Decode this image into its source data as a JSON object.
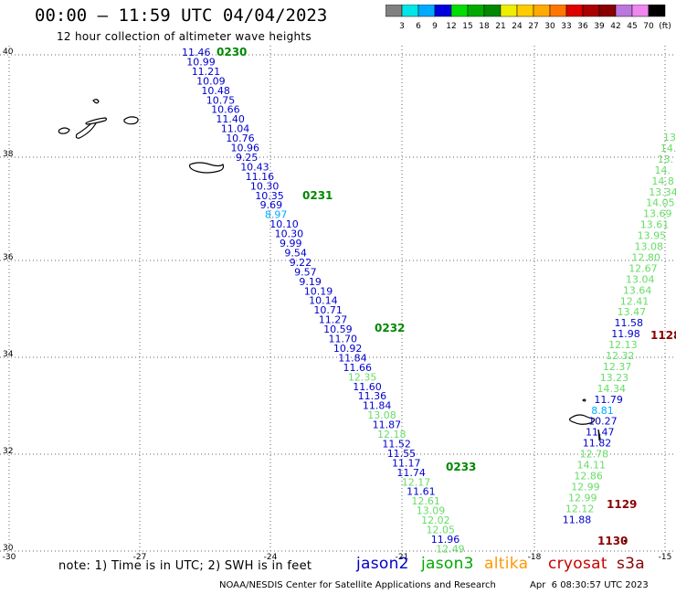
{
  "header": {
    "title": "00:00 – 11:59 UTC 04/04/2023",
    "subtitle": "12 hour collection of altimeter wave heights"
  },
  "color_scale": {
    "labels": [
      "3",
      "6",
      "9",
      "12",
      "15",
      "18",
      "21",
      "24",
      "27",
      "30",
      "33",
      "36",
      "39",
      "42",
      "45",
      "70",
      "(ft)"
    ],
    "colors": [
      "#808080",
      "#00e5e5",
      "#00aaff",
      "#0000dd",
      "#00dd00",
      "#00aa00",
      "#008800",
      "#eeee00",
      "#ffcc00",
      "#ffaa00",
      "#ff7700",
      "#dd0000",
      "#aa0000",
      "#880000",
      "#bb77dd",
      "#ee88ee",
      "#000000"
    ]
  },
  "axes": {
    "lat_labels": [
      "40",
      "38",
      "36",
      "34",
      "32",
      "30"
    ],
    "lon_labels": [
      "-30",
      "-27",
      "-24",
      "-21",
      "-18",
      "-15"
    ]
  },
  "tracks": {
    "left": {
      "times": [
        "0230",
        "0231",
        "0232",
        "0233"
      ],
      "values": [
        {
          "v": "11.46",
          "c": "#0000cc"
        },
        {
          "v": "10.99",
          "c": "#0000cc"
        },
        {
          "v": "11.21",
          "c": "#0000cc"
        },
        {
          "v": "10.09",
          "c": "#0000cc"
        },
        {
          "v": "10.48",
          "c": "#0000cc"
        },
        {
          "v": "10.75",
          "c": "#0000cc"
        },
        {
          "v": "10.66",
          "c": "#0000cc"
        },
        {
          "v": "11.40",
          "c": "#0000cc"
        },
        {
          "v": "11.04",
          "c": "#0000cc"
        },
        {
          "v": "10.76",
          "c": "#0000cc"
        },
        {
          "v": "10.96",
          "c": "#0000cc"
        },
        {
          "v": "9.25",
          "c": "#0000cc"
        },
        {
          "v": "10.43",
          "c": "#0000cc"
        },
        {
          "v": "11.16",
          "c": "#0000cc"
        },
        {
          "v": "10.30",
          "c": "#0000cc"
        },
        {
          "v": "10.35",
          "c": "#0000cc"
        },
        {
          "v": "9.69",
          "c": "#0000cc"
        },
        {
          "v": "8.97",
          "c": "#00aaff"
        },
        {
          "v": "10.10",
          "c": "#0000cc"
        },
        {
          "v": "10.30",
          "c": "#0000cc"
        },
        {
          "v": "9.99",
          "c": "#0000cc"
        },
        {
          "v": "9.54",
          "c": "#0000cc"
        },
        {
          "v": "9.22",
          "c": "#0000cc"
        },
        {
          "v": "9.57",
          "c": "#0000cc"
        },
        {
          "v": "9.19",
          "c": "#0000cc"
        },
        {
          "v": "10.19",
          "c": "#0000cc"
        },
        {
          "v": "10.14",
          "c": "#0000cc"
        },
        {
          "v": "10.71",
          "c": "#0000cc"
        },
        {
          "v": "11.27",
          "c": "#0000cc"
        },
        {
          "v": "10.59",
          "c": "#0000cc"
        },
        {
          "v": "11.70",
          "c": "#0000cc"
        },
        {
          "v": "10.92",
          "c": "#0000cc"
        },
        {
          "v": "11.84",
          "c": "#0000cc"
        },
        {
          "v": "11.66",
          "c": "#0000cc"
        },
        {
          "v": "12.35",
          "c": "#66dd66"
        },
        {
          "v": "11.60",
          "c": "#0000cc"
        },
        {
          "v": "11.36",
          "c": "#0000cc"
        },
        {
          "v": "11.84",
          "c": "#0000cc"
        },
        {
          "v": "13.08",
          "c": "#66dd66"
        },
        {
          "v": "11.87",
          "c": "#0000cc"
        },
        {
          "v": "12.18",
          "c": "#66dd66"
        },
        {
          "v": "11.52",
          "c": "#0000cc"
        },
        {
          "v": "11.55",
          "c": "#0000cc"
        },
        {
          "v": "11.17",
          "c": "#0000cc"
        },
        {
          "v": "11.74",
          "c": "#0000cc"
        },
        {
          "v": "12.17",
          "c": "#66dd66"
        },
        {
          "v": "11.61",
          "c": "#0000cc"
        },
        {
          "v": "12.61",
          "c": "#66dd66"
        },
        {
          "v": "13.09",
          "c": "#66dd66"
        },
        {
          "v": "12.02",
          "c": "#66dd66"
        },
        {
          "v": "12.05",
          "c": "#66dd66"
        },
        {
          "v": "11.96",
          "c": "#0000cc"
        },
        {
          "v": "12.49",
          "c": "#66dd66"
        }
      ]
    },
    "right": {
      "times": [
        "1128",
        "1129",
        "1130"
      ],
      "values": [
        {
          "v": "13.",
          "c": "#66dd66"
        },
        {
          "v": "14.",
          "c": "#66dd66"
        },
        {
          "v": "13.",
          "c": "#66dd66"
        },
        {
          "v": "14.",
          "c": "#66dd66"
        },
        {
          "v": "14.8",
          "c": "#66dd66"
        },
        {
          "v": "13.34",
          "c": "#66dd66"
        },
        {
          "v": "14.05",
          "c": "#66dd66"
        },
        {
          "v": "13.69",
          "c": "#66dd66"
        },
        {
          "v": "13.61",
          "c": "#66dd66"
        },
        {
          "v": "13.95",
          "c": "#66dd66"
        },
        {
          "v": "13.08",
          "c": "#66dd66"
        },
        {
          "v": "12.80",
          "c": "#66dd66"
        },
        {
          "v": "12.67",
          "c": "#66dd66"
        },
        {
          "v": "13.04",
          "c": "#66dd66"
        },
        {
          "v": "13.64",
          "c": "#66dd66"
        },
        {
          "v": "12.41",
          "c": "#66dd66"
        },
        {
          "v": "13.47",
          "c": "#66dd66"
        },
        {
          "v": "11.58",
          "c": "#0000cc"
        },
        {
          "v": "11.98",
          "c": "#0000cc"
        },
        {
          "v": "12.13",
          "c": "#66dd66"
        },
        {
          "v": "12.32",
          "c": "#66dd66"
        },
        {
          "v": "12.37",
          "c": "#66dd66"
        },
        {
          "v": "13.23",
          "c": "#66dd66"
        },
        {
          "v": "14.34",
          "c": "#66dd66"
        },
        {
          "v": "11.79",
          "c": "#0000cc"
        },
        {
          "v": "8.81",
          "c": "#00aaff"
        },
        {
          "v": "10.27",
          "c": "#0000cc"
        },
        {
          "v": "11.47",
          "c": "#0000cc"
        },
        {
          "v": "11.82",
          "c": "#0000cc"
        },
        {
          "v": "12.78",
          "c": "#66dd66"
        },
        {
          "v": "14.11",
          "c": "#66dd66"
        },
        {
          "v": "12.86",
          "c": "#66dd66"
        },
        {
          "v": "12.99",
          "c": "#66dd66"
        },
        {
          "v": "12.99",
          "c": "#66dd66"
        },
        {
          "v": "12.12",
          "c": "#66dd66"
        },
        {
          "v": "11.88",
          "c": "#0000cc"
        }
      ]
    }
  },
  "legend": {
    "note": "note:  1) Time is in UTC;  2) SWH is in feet",
    "satellites": {
      "jason2": "jason2",
      "jason3": "jason3",
      "altika": "altika",
      "cryosat": "cryosat",
      "s3a": "s3a"
    }
  },
  "footer": {
    "credit": "NOAA/NESDIS Center for Satellite Applications and Research",
    "timestamp": "Apr  6 08:30:57 UTC 2023"
  },
  "colors": {
    "time_label_left": "#008800",
    "time_label_right": "#8b0000",
    "grid": "#666666"
  }
}
